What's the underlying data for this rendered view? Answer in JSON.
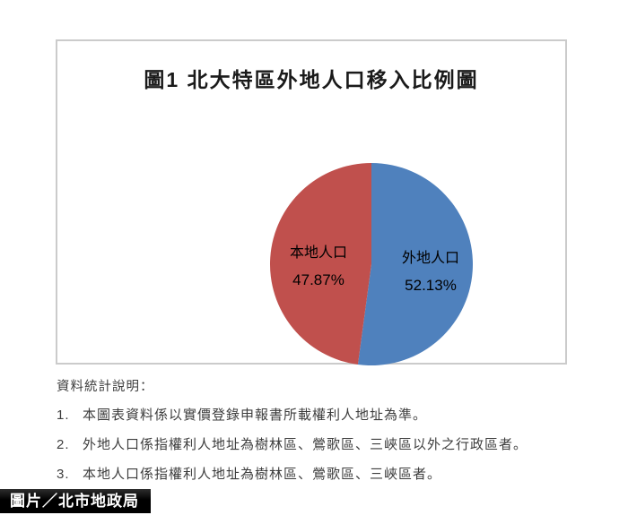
{
  "figure": {
    "title": "圖1  北大特區外地人口移入比例圖"
  },
  "chart_data": {
    "type": "pie",
    "title": "圖1  北大特區外地人口移入比例圖",
    "start_angle_deg": -90,
    "direction": "clockwise",
    "labels_inside": true,
    "legend": "none",
    "slices": [
      {
        "label": "外地人口",
        "value": 52.13,
        "display": "52.13%",
        "color": "#4f81bd"
      },
      {
        "label": "本地人口",
        "value": 47.87,
        "display": "47.87%",
        "color": "#c0504d"
      }
    ]
  },
  "notes": {
    "heading": "資料統計說明：",
    "items": [
      {
        "num": "1.",
        "text": "本圖表資料係以實價登錄申報書所載權利人地址為準。"
      },
      {
        "num": "2.",
        "text": "外地人口係指權利人地址為樹林區、鶯歌區、三峽區以外之行政區者。"
      },
      {
        "num": "3.",
        "text": "本地人口係指權利人地址為樹林區、鶯歌區、三峽區者。"
      }
    ]
  },
  "credit": {
    "text": "圖片／北市地政局"
  }
}
